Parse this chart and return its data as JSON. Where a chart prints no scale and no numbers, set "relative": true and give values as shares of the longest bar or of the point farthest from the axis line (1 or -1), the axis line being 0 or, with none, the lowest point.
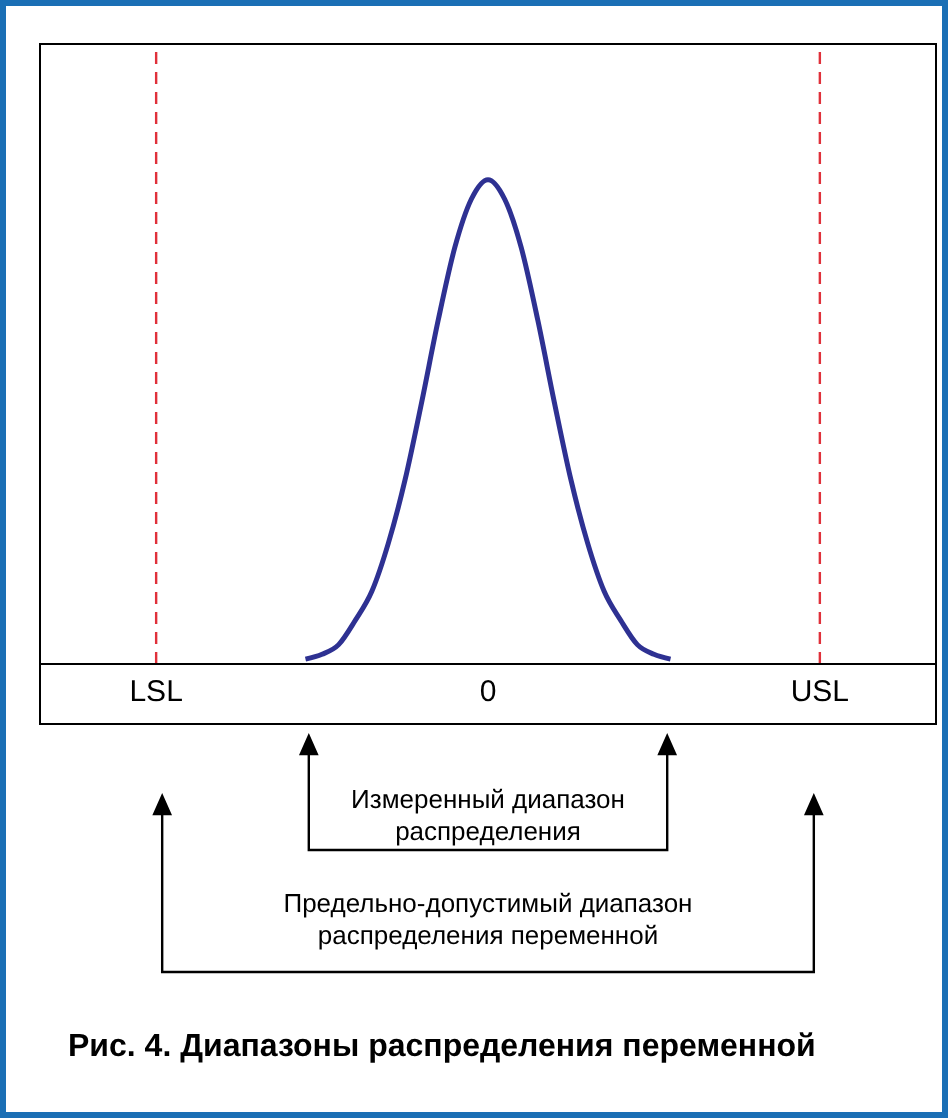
{
  "chart_data": {
    "type": "line",
    "title": "Рис. 4. Диапазоны распределения переменной",
    "relative": true,
    "categories": [
      null,
      null,
      null,
      null,
      null,
      null,
      null,
      "LSL",
      null,
      null,
      null,
      null,
      null,
      null,
      null,
      null,
      null,
      null,
      null,
      null,
      null,
      null,
      null,
      null,
      null,
      null,
      null,
      "0",
      null,
      null,
      null,
      null,
      null,
      null,
      null,
      null,
      null,
      null,
      null,
      null,
      null,
      null,
      null,
      null,
      null,
      null,
      null,
      "USL",
      null,
      null,
      null,
      null,
      null,
      null,
      null
    ],
    "series": [
      {
        "color": "#2e3192",
        "values": [
          null,
          null,
          null,
          null,
          null,
          null,
          null,
          null,
          null,
          null,
          null,
          null,
          null,
          null,
          null,
          null,
          0.01,
          0.02,
          0.04,
          0.09,
          0.15,
          0.25,
          0.38,
          0.54,
          0.71,
          0.86,
          0.96,
          1,
          0.96,
          0.86,
          0.71,
          0.54,
          0.38,
          0.25,
          0.15,
          0.09,
          0.04,
          0.02,
          0.01,
          null,
          null,
          null,
          null,
          null,
          null,
          null,
          null,
          null,
          null,
          null,
          null,
          null,
          null,
          null,
          null
        ]
      }
    ],
    "ref_lines": [
      {
        "axis": "x",
        "value": "LSL",
        "color": "#e0303a",
        "line_style": "dashed"
      },
      {
        "axis": "x",
        "value": "USL",
        "color": "#e0303a",
        "line_style": "dashed"
      }
    ],
    "annotations": [
      "Измеренный диапазон распределения",
      "Предельно-допустимый диапазон распределения переменной"
    ],
    "grid": false,
    "marker": "none",
    "line_style": "solid"
  }
}
